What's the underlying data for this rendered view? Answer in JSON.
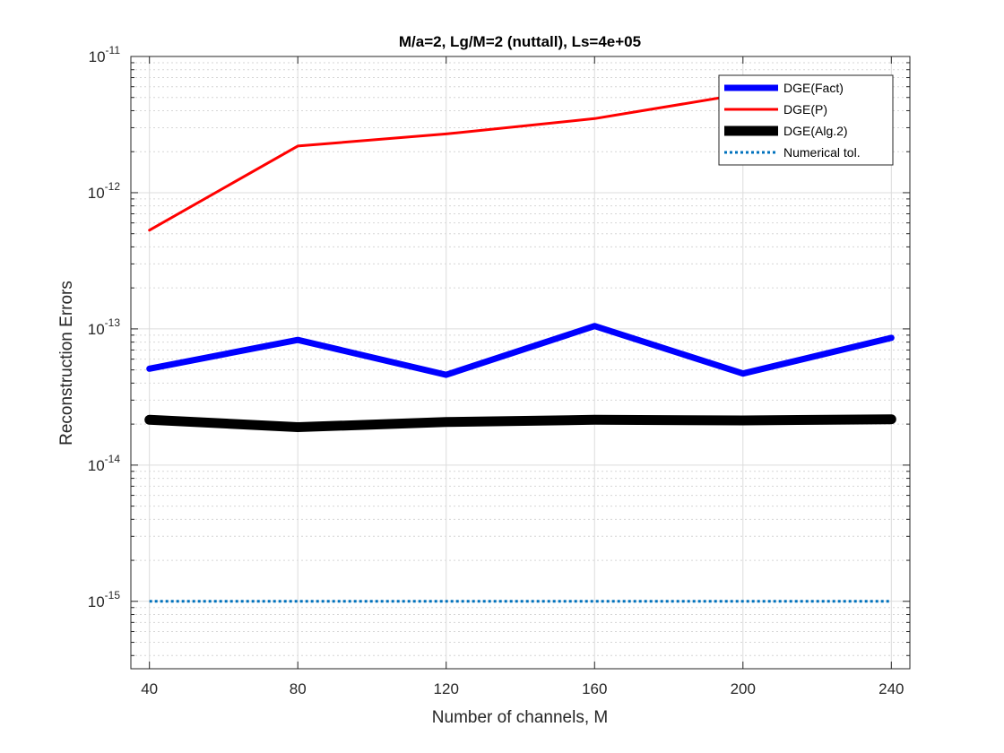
{
  "chart_data": {
    "type": "line",
    "title": "M/a=2, Lg/M=2 (nuttall), Ls=4e+05",
    "xlabel": "Number of channels, M",
    "ylabel": "Reconstruction Errors",
    "x": [
      40,
      80,
      120,
      160,
      200,
      240
    ],
    "x_tick_labels": [
      "40",
      "80",
      "120",
      "160",
      "200",
      "240"
    ],
    "xlim": [
      35,
      245
    ],
    "y_scale": "log",
    "ylim": [
      3.2e-16,
      1e-11
    ],
    "y_ticks": [
      {
        "value": 1e-11,
        "base": "10",
        "exp": "-11"
      },
      {
        "value": 1e-12,
        "base": "10",
        "exp": "-12"
      },
      {
        "value": 1e-13,
        "base": "10",
        "exp": "-13"
      },
      {
        "value": 1e-14,
        "base": "10",
        "exp": "-14"
      },
      {
        "value": 1e-15,
        "base": "10",
        "exp": "-15"
      }
    ],
    "grid": true,
    "minor_grid": true,
    "legend_position": "top-right",
    "series": [
      {
        "name": "DGE(Fact)",
        "color": "#0000ff",
        "style": "solid",
        "width": "thick",
        "values": [
          5.1e-14,
          8.3e-14,
          4.6e-14,
          1.05e-13,
          4.7e-14,
          8.6e-14
        ]
      },
      {
        "name": "DGE(P)",
        "color": "#ff0000",
        "style": "solid",
        "width": "medium",
        "values": [
          5.3e-13,
          2.2e-12,
          2.7e-12,
          3.5e-12,
          5.3e-12,
          6.2e-12
        ]
      },
      {
        "name": "DGE(Alg.2)",
        "color": "#000000",
        "style": "solid",
        "width": "extra-thick",
        "values": [
          2.15e-14,
          1.9e-14,
          2.07e-14,
          2.15e-14,
          2.13e-14,
          2.17e-14
        ]
      },
      {
        "name": "Numerical tol.",
        "color": "#0072bd",
        "style": "dotted",
        "width": "medium",
        "values": [
          1e-15,
          1e-15,
          1e-15,
          1e-15,
          1e-15,
          1e-15
        ]
      }
    ]
  }
}
